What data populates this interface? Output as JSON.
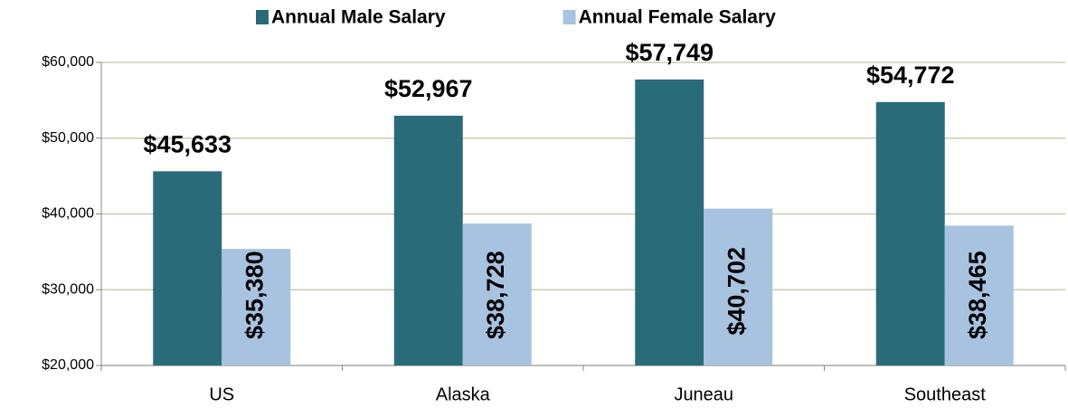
{
  "chart_data": {
    "type": "bar",
    "categories": [
      "US",
      "Alaska",
      "Juneau",
      "Southeast"
    ],
    "series": [
      {
        "name": "Annual Male Salary",
        "color": "#2a6b7a",
        "values": [
          45633,
          52967,
          57749,
          54772
        ],
        "value_labels": [
          "$45,633",
          "$52,967",
          "$57,749",
          "$54,772"
        ]
      },
      {
        "name": "Annual Female Salary",
        "color": "#a8c3e0",
        "values": [
          35380,
          38728,
          40702,
          38465
        ],
        "value_labels": [
          "$35,380",
          "$38,728",
          "$40,702",
          "$38,465"
        ]
      }
    ],
    "ylim": [
      20000,
      60000
    ],
    "yticks": [
      {
        "value": 20000,
        "label": "$20,000"
      },
      {
        "value": 30000,
        "label": "$30,000"
      },
      {
        "value": 40000,
        "label": "$40,000"
      },
      {
        "value": 50000,
        "label": "$50,000"
      },
      {
        "value": 60000,
        "label": "$60,000"
      }
    ],
    "grid": true,
    "legend": "top"
  }
}
